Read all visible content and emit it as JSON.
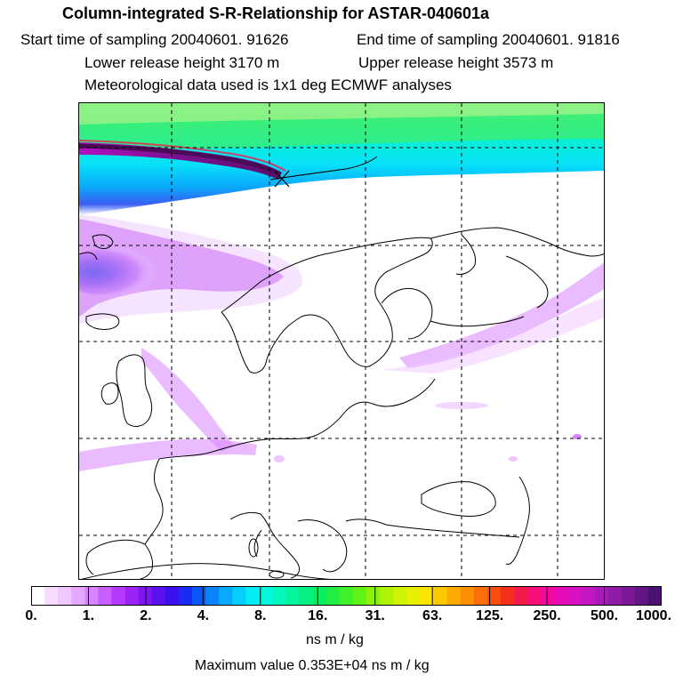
{
  "header": {
    "title": "Column-integrated S-R-Relationship for ASTAR-040601a",
    "start_time": "Start time of sampling 20040601. 91626",
    "end_time": "End time of sampling 20040601. 91816",
    "lower_height": "Lower release height 3170 m",
    "upper_height": "Upper release height 3573 m",
    "met_data": "Meteorological data used is 1x1 deg ECMWF analyses"
  },
  "map": {
    "region": "Europe and North Atlantic / Arctic",
    "source_marker": "X"
  },
  "colorbar": {
    "ticks": [
      "0.",
      "1.",
      "2.",
      "4.",
      "8.",
      "16.",
      "31.",
      "63.",
      "125.",
      "250.",
      "500.",
      "1000."
    ],
    "colors": [
      "#ffffff",
      "#f6ddff",
      "#efc6ff",
      "#e6a8ff",
      "#d884ff",
      "#c85eff",
      "#b638ff",
      "#9b23f5",
      "#7d17f0",
      "#5b10ee",
      "#3a10ee",
      "#1a2af0",
      "#0a57f5",
      "#0a82fa",
      "#08aaff",
      "#06cdfb",
      "#05ecf3",
      "#05f8da",
      "#05f8bb",
      "#05f59e",
      "#06f180",
      "#0cee62",
      "#20ee44",
      "#3ff02a",
      "#64f214",
      "#8cf20a",
      "#b0f207",
      "#cff205",
      "#e8ef04",
      "#f9e403",
      "#fdc902",
      "#fdab02",
      "#fc8e04",
      "#fb6e08",
      "#f84e10",
      "#f3301c",
      "#f51a4c",
      "#f80e78",
      "#f50aa0",
      "#e80cb8",
      "#d811c2",
      "#c217c2",
      "#aa1ab8",
      "#921aa8",
      "#7a1898",
      "#621585",
      "#4a1270"
    ],
    "unit": "ns m / kg",
    "maximum": "Maximum value  0.353E+04 ns m / kg"
  }
}
